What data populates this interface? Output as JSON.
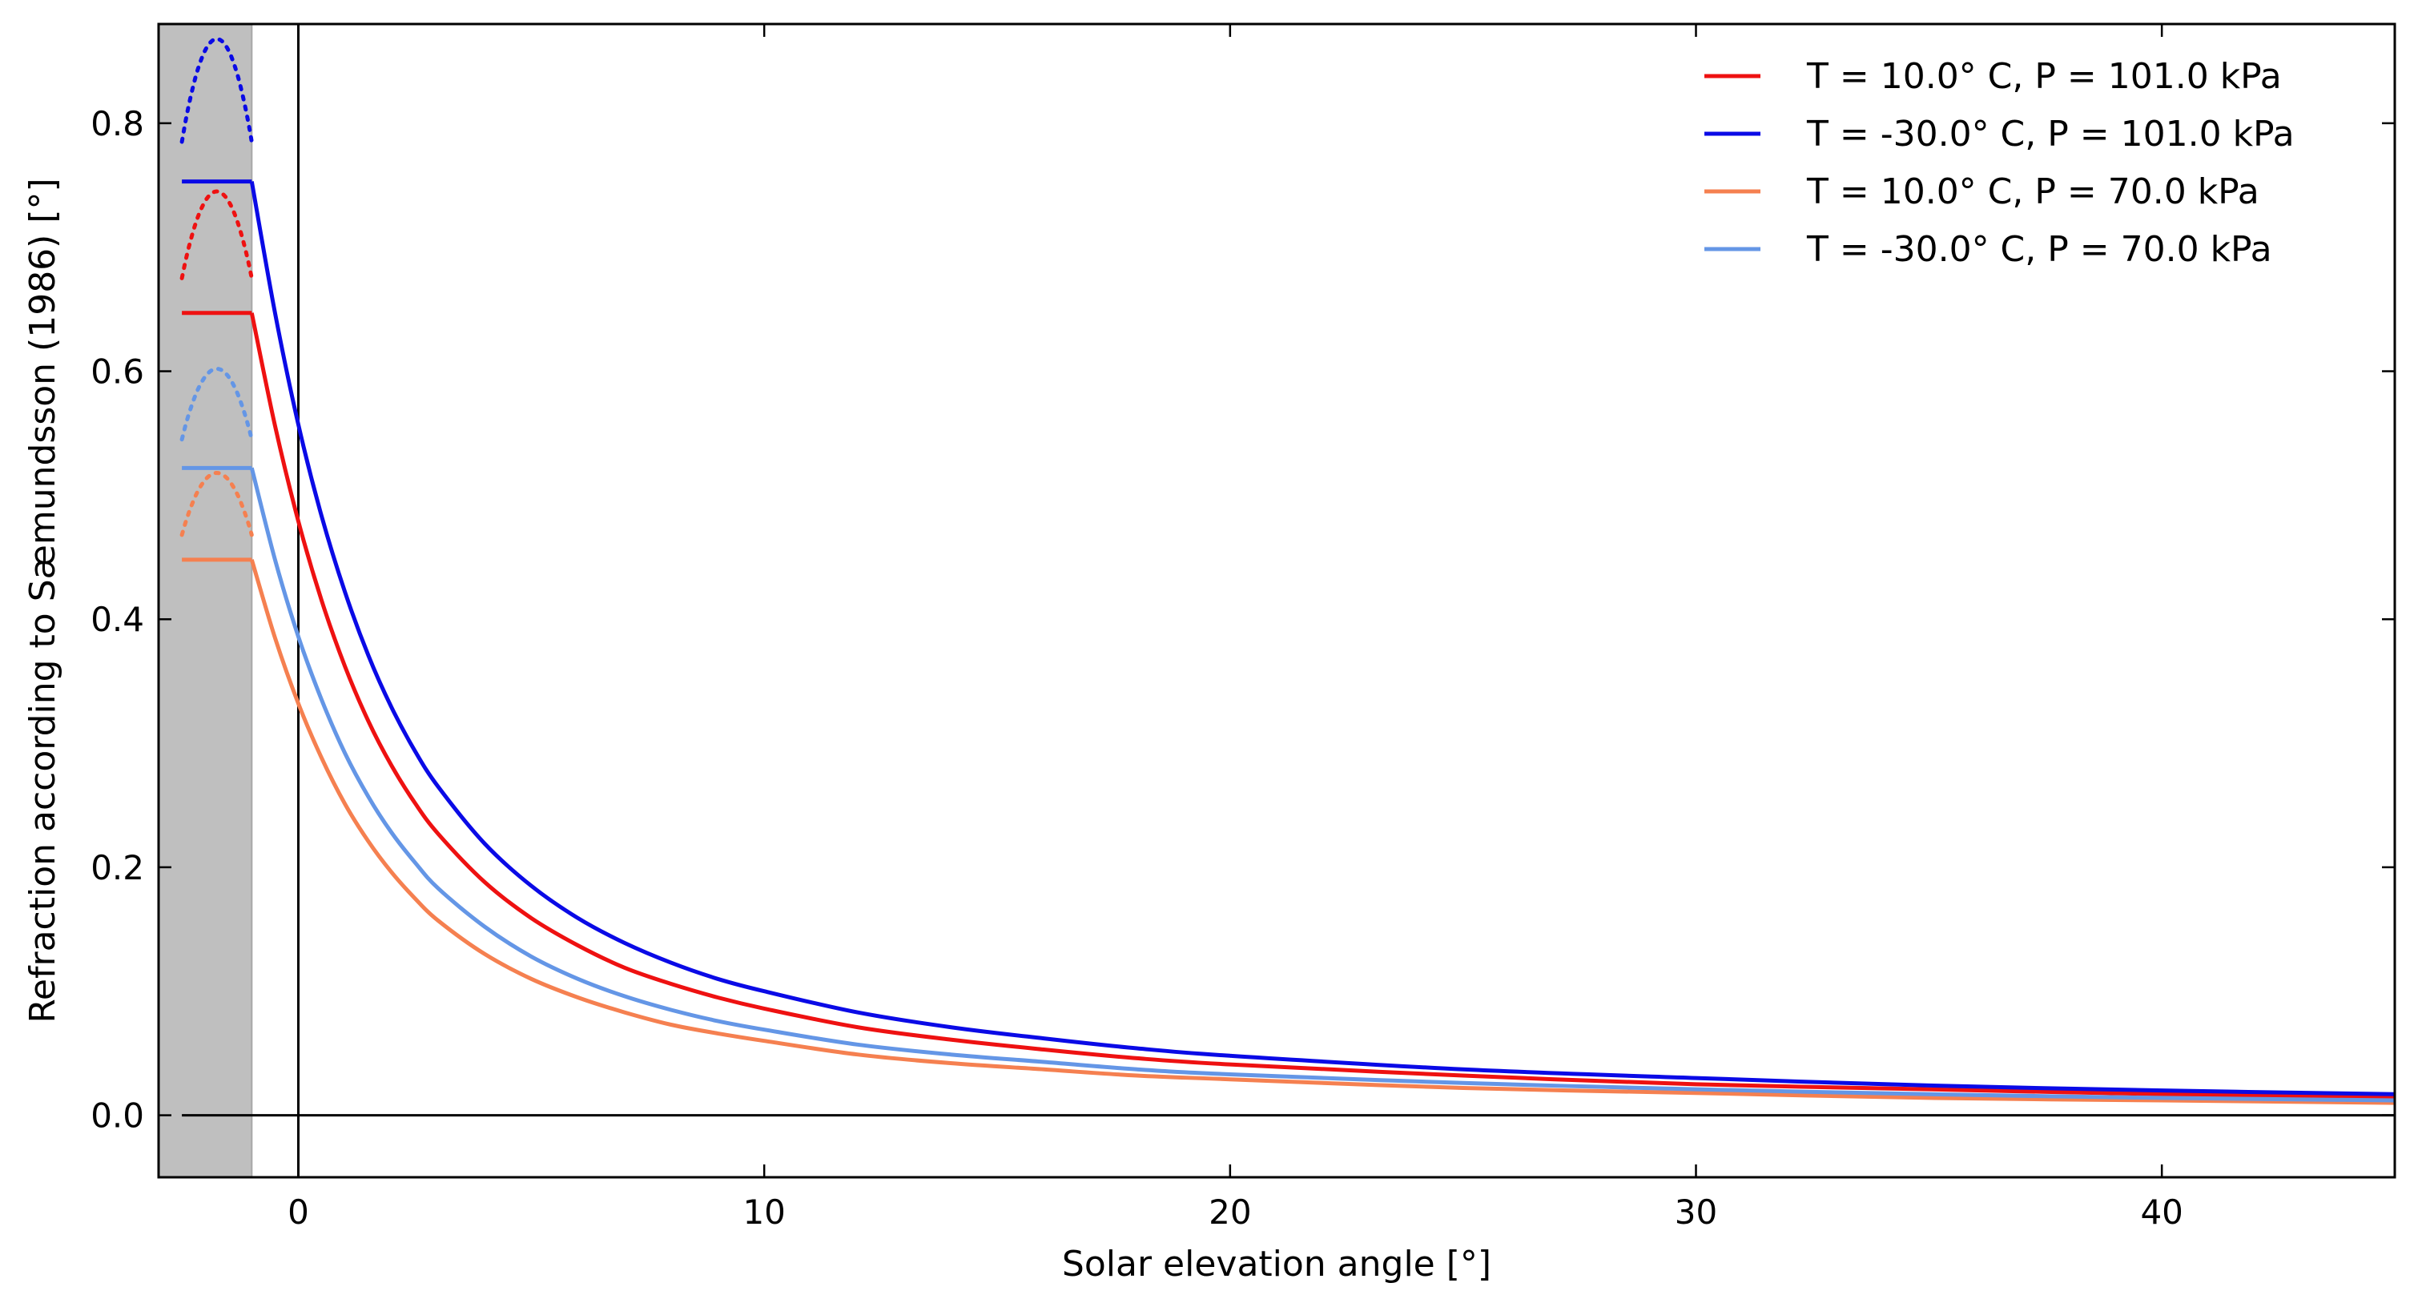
{
  "chart_data": {
    "type": "line",
    "xlabel": "Solar elevation angle [°]",
    "ylabel": "Refraction according to Sæmundsson (1986) [°]",
    "xlim": [
      -3,
      45
    ],
    "ylim": [
      -0.05,
      0.88
    ],
    "xticks": [
      0,
      10,
      20,
      30,
      40
    ],
    "yticks": [
      0.0,
      0.2,
      0.4,
      0.6,
      0.8
    ],
    "xtick_labels": [
      "0",
      "10",
      "20",
      "30",
      "40"
    ],
    "ytick_labels": [
      "0.0",
      "0.2",
      "0.4",
      "0.6",
      "0.8"
    ],
    "grid": false,
    "legend_position": "top-right",
    "shaded_region": {
      "x_start": -3,
      "x_end": -1,
      "color": "#bfbfbf"
    },
    "reference_lines": {
      "x": 0,
      "y": 0
    },
    "series": [
      {
        "name": "T = 10.0° C, P = 101.0 kPa",
        "color": "#ee1111",
        "T": 10.0,
        "P": 101.0,
        "plateau": {
          "x_range": [
            -2.5,
            -1
          ],
          "y": 0.647
        },
        "dotted_arc": {
          "x_range": [
            -2.5,
            -1
          ],
          "y_edge": 0.675,
          "y_peak": 0.745
        },
        "x": [
          -1,
          -0.5,
          0,
          0.5,
          1,
          1.5,
          2,
          2.5,
          3,
          4,
          5,
          6,
          7,
          8,
          9,
          10,
          12,
          14,
          16,
          18,
          20,
          25,
          30,
          35,
          40,
          45
        ],
        "y": [
          0.647,
          0.556,
          0.479,
          0.415,
          0.362,
          0.318,
          0.282,
          0.252,
          0.227,
          0.188,
          0.159,
          0.137,
          0.119,
          0.106,
          0.095,
          0.086,
          0.071,
          0.061,
          0.053,
          0.046,
          0.041,
          0.032,
          0.025,
          0.021,
          0.017,
          0.015
        ]
      },
      {
        "name": "T = -30.0° C, P = 101.0 kPa",
        "color": "#0a0ae6",
        "T": -30.0,
        "P": 101.0,
        "plateau": {
          "x_range": [
            -2.5,
            -1
          ],
          "y": 0.753
        },
        "dotted_arc": {
          "x_range": [
            -2.5,
            -1
          ],
          "y_edge": 0.785,
          "y_peak": 0.868
        },
        "x": [
          -1,
          -0.5,
          0,
          0.5,
          1,
          1.5,
          2,
          2.5,
          3,
          4,
          5,
          6,
          7,
          8,
          9,
          10,
          12,
          14,
          16,
          18,
          20,
          25,
          30,
          35,
          40,
          45
        ],
        "y": [
          0.753,
          0.647,
          0.557,
          0.483,
          0.422,
          0.371,
          0.329,
          0.294,
          0.265,
          0.219,
          0.185,
          0.159,
          0.139,
          0.123,
          0.11,
          0.1,
          0.083,
          0.071,
          0.062,
          0.054,
          0.048,
          0.037,
          0.03,
          0.024,
          0.02,
          0.017
        ]
      },
      {
        "name": "T = 10.0° C, P = 70.0 kPa",
        "color": "#f58050",
        "T": 10.0,
        "P": 70.0,
        "plateau": {
          "x_range": [
            -2.5,
            -1
          ],
          "y": 0.448
        },
        "dotted_arc": {
          "x_range": [
            -2.5,
            -1
          ],
          "y_edge": 0.468,
          "y_peak": 0.518
        },
        "x": [
          -1,
          -0.5,
          0,
          0.5,
          1,
          1.5,
          2,
          2.5,
          3,
          4,
          5,
          6,
          7,
          8,
          9,
          10,
          12,
          14,
          16,
          18,
          20,
          25,
          30,
          35,
          40,
          45
        ],
        "y": [
          0.448,
          0.385,
          0.332,
          0.288,
          0.251,
          0.221,
          0.196,
          0.175,
          0.157,
          0.13,
          0.11,
          0.095,
          0.083,
          0.073,
          0.066,
          0.06,
          0.049,
          0.042,
          0.037,
          0.032,
          0.029,
          0.022,
          0.018,
          0.014,
          0.012,
          0.01
        ]
      },
      {
        "name": "T = -30.0° C, P = 70.0 kPa",
        "color": "#6496e6",
        "T": -30.0,
        "P": 70.0,
        "plateau": {
          "x_range": [
            -2.5,
            -1
          ],
          "y": 0.522
        },
        "dotted_arc": {
          "x_range": [
            -2.5,
            -1
          ],
          "y_edge": 0.545,
          "y_peak": 0.602
        },
        "x": [
          -1,
          -0.5,
          0,
          0.5,
          1,
          1.5,
          2,
          2.5,
          3,
          4,
          5,
          6,
          7,
          8,
          9,
          10,
          12,
          14,
          16,
          18,
          20,
          25,
          30,
          35,
          40,
          45
        ],
        "y": [
          0.522,
          0.448,
          0.386,
          0.335,
          0.292,
          0.257,
          0.228,
          0.204,
          0.183,
          0.152,
          0.128,
          0.11,
          0.096,
          0.085,
          0.076,
          0.069,
          0.057,
          0.049,
          0.043,
          0.037,
          0.033,
          0.026,
          0.021,
          0.017,
          0.014,
          0.012
        ]
      }
    ]
  }
}
